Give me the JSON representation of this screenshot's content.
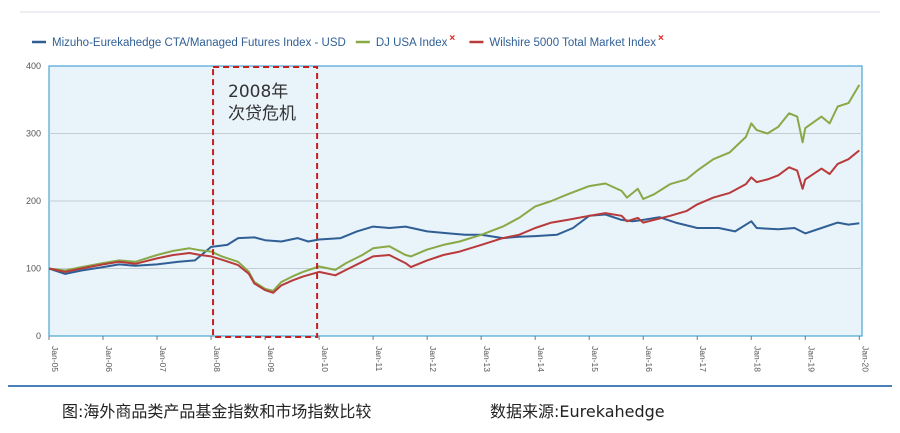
{
  "legend": [
    {
      "label": "Mizuho-Eurekahedge CTA/Managed Futures Index - USD",
      "color": "#2f5f95",
      "mark": ""
    },
    {
      "label": "DJ USA Index",
      "color": "#88a946",
      "mark": "×"
    },
    {
      "label": "Wilshire 5000 Total Market Index",
      "color": "#b83a3a",
      "mark": "×"
    }
  ],
  "annotation": {
    "line1": "2008年",
    "line2": "次贷危机"
  },
  "caption": {
    "left": "图:海外商品类产品基金指数和市场指数比较",
    "right": "数据来源:Eurekahedge"
  },
  "chart_data": {
    "type": "line",
    "ylim": [
      0,
      400
    ],
    "yticks": [
      0,
      100,
      200,
      300,
      400
    ],
    "xlim": [
      2005,
      2020.05
    ],
    "xticks": [
      "Jan-05",
      "Jan-06",
      "Jan-07",
      "Jan-08",
      "Jan-09",
      "Jan-10",
      "Jan-11",
      "Jan-12",
      "Jan-13",
      "Jan-14",
      "Jan-15",
      "Jan-16",
      "Jan-17",
      "Jan-18",
      "Jan-19",
      "Jan-20"
    ],
    "grid": true,
    "legend_position": "top",
    "highlight_range": [
      2008.0,
      2010.0
    ],
    "series": [
      {
        "name": "Mizuho-Eurekahedge CTA/Managed Futures Index - USD",
        "color": "#2f5f95",
        "points": [
          [
            2005.0,
            100
          ],
          [
            2005.3,
            92
          ],
          [
            2005.6,
            97
          ],
          [
            2006.0,
            102
          ],
          [
            2006.3,
            106
          ],
          [
            2006.6,
            104
          ],
          [
            2007.0,
            106
          ],
          [
            2007.4,
            110
          ],
          [
            2007.7,
            112
          ],
          [
            2008.0,
            132
          ],
          [
            2008.3,
            135
          ],
          [
            2008.5,
            145
          ],
          [
            2008.8,
            146
          ],
          [
            2009.0,
            142
          ],
          [
            2009.3,
            140
          ],
          [
            2009.6,
            145
          ],
          [
            2009.8,
            140
          ],
          [
            2010.0,
            143
          ],
          [
            2010.4,
            145
          ],
          [
            2010.7,
            155
          ],
          [
            2011.0,
            162
          ],
          [
            2011.3,
            160
          ],
          [
            2011.6,
            162
          ],
          [
            2012.0,
            155
          ],
          [
            2012.4,
            152
          ],
          [
            2012.7,
            150
          ],
          [
            2013.0,
            150
          ],
          [
            2013.4,
            145
          ],
          [
            2013.7,
            147
          ],
          [
            2014.0,
            148
          ],
          [
            2014.4,
            150
          ],
          [
            2014.7,
            160
          ],
          [
            2015.0,
            178
          ],
          [
            2015.3,
            180
          ],
          [
            2015.6,
            172
          ],
          [
            2015.8,
            170
          ],
          [
            2016.0,
            172
          ],
          [
            2016.3,
            176
          ],
          [
            2016.6,
            168
          ],
          [
            2016.9,
            162
          ],
          [
            2017.0,
            160
          ],
          [
            2017.4,
            160
          ],
          [
            2017.7,
            155
          ],
          [
            2018.0,
            170
          ],
          [
            2018.1,
            160
          ],
          [
            2018.5,
            158
          ],
          [
            2018.8,
            160
          ],
          [
            2019.0,
            152
          ],
          [
            2019.3,
            160
          ],
          [
            2019.6,
            168
          ],
          [
            2019.8,
            165
          ],
          [
            2020.0,
            167
          ]
        ]
      },
      {
        "name": "DJ USA Index",
        "color": "#88a946",
        "points": [
          [
            2005.0,
            100
          ],
          [
            2005.3,
            97
          ],
          [
            2005.6,
            102
          ],
          [
            2006.0,
            108
          ],
          [
            2006.3,
            112
          ],
          [
            2006.6,
            110
          ],
          [
            2007.0,
            120
          ],
          [
            2007.3,
            126
          ],
          [
            2007.6,
            130
          ],
          [
            2007.8,
            127
          ],
          [
            2008.0,
            125
          ],
          [
            2008.2,
            118
          ],
          [
            2008.5,
            110
          ],
          [
            2008.7,
            95
          ],
          [
            2008.8,
            80
          ],
          [
            2009.0,
            70
          ],
          [
            2009.15,
            67
          ],
          [
            2009.3,
            80
          ],
          [
            2009.5,
            88
          ],
          [
            2009.7,
            95
          ],
          [
            2010.0,
            103
          ],
          [
            2010.3,
            98
          ],
          [
            2010.5,
            108
          ],
          [
            2010.8,
            120
          ],
          [
            2011.0,
            130
          ],
          [
            2011.3,
            133
          ],
          [
            2011.6,
            120
          ],
          [
            2011.7,
            118
          ],
          [
            2012.0,
            128
          ],
          [
            2012.3,
            135
          ],
          [
            2012.6,
            140
          ],
          [
            2013.0,
            150
          ],
          [
            2013.4,
            162
          ],
          [
            2013.7,
            175
          ],
          [
            2014.0,
            192
          ],
          [
            2014.3,
            200
          ],
          [
            2014.6,
            210
          ],
          [
            2015.0,
            222
          ],
          [
            2015.3,
            226
          ],
          [
            2015.6,
            215
          ],
          [
            2015.7,
            205
          ],
          [
            2015.9,
            218
          ],
          [
            2016.0,
            203
          ],
          [
            2016.2,
            210
          ],
          [
            2016.5,
            225
          ],
          [
            2016.8,
            232
          ],
          [
            2017.0,
            245
          ],
          [
            2017.3,
            262
          ],
          [
            2017.6,
            272
          ],
          [
            2017.9,
            295
          ],
          [
            2018.0,
            315
          ],
          [
            2018.1,
            305
          ],
          [
            2018.3,
            300
          ],
          [
            2018.5,
            310
          ],
          [
            2018.7,
            330
          ],
          [
            2018.85,
            325
          ],
          [
            2018.95,
            287
          ],
          [
            2019.0,
            308
          ],
          [
            2019.3,
            325
          ],
          [
            2019.45,
            315
          ],
          [
            2019.6,
            340
          ],
          [
            2019.8,
            345
          ],
          [
            2020.0,
            372
          ]
        ]
      },
      {
        "name": "Wilshire 5000 Total Market Index",
        "color": "#b83a3a",
        "points": [
          [
            2005.0,
            100
          ],
          [
            2005.3,
            95
          ],
          [
            2005.6,
            100
          ],
          [
            2006.0,
            106
          ],
          [
            2006.3,
            110
          ],
          [
            2006.6,
            107
          ],
          [
            2007.0,
            115
          ],
          [
            2007.3,
            120
          ],
          [
            2007.6,
            123
          ],
          [
            2007.8,
            120
          ],
          [
            2008.0,
            118
          ],
          [
            2008.2,
            113
          ],
          [
            2008.5,
            105
          ],
          [
            2008.7,
            92
          ],
          [
            2008.8,
            78
          ],
          [
            2009.0,
            68
          ],
          [
            2009.15,
            64
          ],
          [
            2009.3,
            75
          ],
          [
            2009.5,
            82
          ],
          [
            2009.7,
            88
          ],
          [
            2010.0,
            95
          ],
          [
            2010.3,
            90
          ],
          [
            2010.5,
            98
          ],
          [
            2010.8,
            110
          ],
          [
            2011.0,
            118
          ],
          [
            2011.3,
            120
          ],
          [
            2011.6,
            108
          ],
          [
            2011.7,
            102
          ],
          [
            2012.0,
            112
          ],
          [
            2012.3,
            120
          ],
          [
            2012.6,
            125
          ],
          [
            2013.0,
            135
          ],
          [
            2013.4,
            145
          ],
          [
            2013.7,
            150
          ],
          [
            2014.0,
            160
          ],
          [
            2014.3,
            168
          ],
          [
            2014.6,
            172
          ],
          [
            2015.0,
            178
          ],
          [
            2015.3,
            182
          ],
          [
            2015.6,
            178
          ],
          [
            2015.7,
            170
          ],
          [
            2015.9,
            175
          ],
          [
            2016.0,
            168
          ],
          [
            2016.2,
            172
          ],
          [
            2016.5,
            178
          ],
          [
            2016.8,
            185
          ],
          [
            2017.0,
            195
          ],
          [
            2017.3,
            205
          ],
          [
            2017.6,
            212
          ],
          [
            2017.9,
            225
          ],
          [
            2018.0,
            235
          ],
          [
            2018.1,
            228
          ],
          [
            2018.3,
            232
          ],
          [
            2018.5,
            238
          ],
          [
            2018.7,
            250
          ],
          [
            2018.85,
            245
          ],
          [
            2018.95,
            218
          ],
          [
            2019.0,
            232
          ],
          [
            2019.3,
            248
          ],
          [
            2019.45,
            240
          ],
          [
            2019.6,
            255
          ],
          [
            2019.8,
            262
          ],
          [
            2020.0,
            275
          ]
        ]
      }
    ]
  }
}
